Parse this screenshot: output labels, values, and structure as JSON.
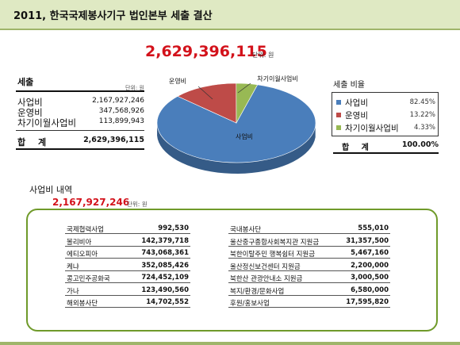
{
  "header": {
    "title": "2011, 한국국제봉사기구  법인본부 세출 결산"
  },
  "total": {
    "amount": "2,629,396,115",
    "unit": "단위: 원"
  },
  "sales": {
    "title": "세출",
    "unit": "단위: 원",
    "rows": [
      {
        "label": "사업비",
        "value": "2,167,927,246"
      },
      {
        "label": "운영비",
        "value": "347,568,926"
      },
      {
        "label": "차기이월사업비",
        "value": "113,899,943"
      }
    ],
    "total_label": "합 계",
    "total_value": "2,629,396,115"
  },
  "legend": {
    "title": "세출 비율",
    "items": [
      {
        "label": "사업비",
        "pct": "82.45%",
        "color": "#4a7ebb"
      },
      {
        "label": "운영비",
        "pct": "13.22%",
        "color": "#be4b48"
      },
      {
        "label": "차기이월사업비",
        "pct": "4.33%",
        "color": "#98b954"
      }
    ],
    "total_label": "합 계",
    "total_value": "100.00%"
  },
  "chart_data": {
    "type": "pie",
    "categories": [
      "사업비",
      "운영비",
      "차기이월사업비"
    ],
    "values": [
      82.45,
      13.22,
      4.33
    ],
    "colors": [
      "#4a7ebb",
      "#be4b48",
      "#98b954"
    ],
    "title": "",
    "data_labels": [
      "사업비",
      "운영비",
      "차기이월사업비"
    ]
  },
  "detail": {
    "title": "사업비 내역",
    "amount": "2,167,927,246",
    "unit": "단위: 원",
    "left": [
      {
        "label": "국제협력사업",
        "value": "992,530"
      },
      {
        "label": "볼리비아",
        "value": "142,379,718"
      },
      {
        "label": "에티오피아",
        "value": "743,068,361"
      },
      {
        "label": "케냐",
        "value": "352,085,426"
      },
      {
        "label": "콩고민주공화국",
        "value": "724,452,109"
      },
      {
        "label": "가나",
        "value": "123,490,560"
      },
      {
        "label": "해외봉사단",
        "value": "14,702,552"
      }
    ],
    "right": [
      {
        "label": "국내봉사단",
        "value": "555,010"
      },
      {
        "label": "울산중구종합사회복지관 지원금",
        "value": "31,357,500"
      },
      {
        "label": "북한이탈주민 행복쉼터 지원금",
        "value": "5,467,160"
      },
      {
        "label": "울산정신보건센터 지원금",
        "value": "2,200,000"
      },
      {
        "label": "북한산 관광안내소 지원금",
        "value": "3,000,500"
      },
      {
        "label": "복지/환경/문화사업",
        "value": "6,580,000"
      },
      {
        "label": "후원/홍보사업",
        "value": "17,595,820"
      }
    ]
  }
}
